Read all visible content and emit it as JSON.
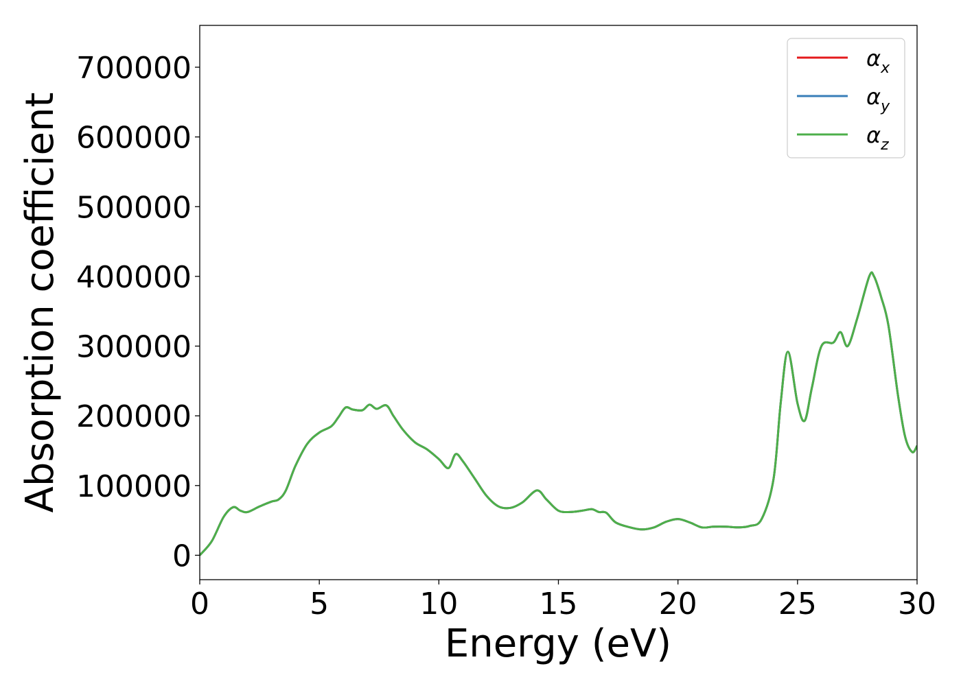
{
  "chart_data": {
    "type": "line",
    "title": "",
    "xlabel": "Energy (eV)",
    "ylabel": "Absorption coefficient",
    "xlim": [
      0,
      30
    ],
    "ylim": [
      -35000,
      760000
    ],
    "xticks": [
      0,
      5,
      10,
      15,
      20,
      25,
      30
    ],
    "yticks": [
      0,
      100000,
      200000,
      300000,
      400000,
      500000,
      600000,
      700000
    ],
    "grid": false,
    "legend_position": "top-right",
    "x": [
      0,
      0.5,
      1.0,
      1.4,
      1.7,
      2.0,
      2.5,
      3.0,
      3.3,
      3.6,
      4.0,
      4.5,
      5.0,
      5.5,
      5.8,
      6.1,
      6.4,
      6.8,
      7.1,
      7.4,
      7.8,
      8.1,
      8.5,
      9.0,
      9.5,
      10.0,
      10.4,
      10.7,
      11.0,
      11.5,
      12.0,
      12.5,
      13.0,
      13.5,
      14.1,
      14.5,
      15.0,
      15.5,
      16.0,
      16.4,
      16.7,
      17.0,
      17.4,
      18.0,
      18.5,
      19.0,
      19.5,
      20.0,
      20.5,
      21.0,
      21.5,
      22.0,
      22.5,
      23.0,
      23.5,
      24.0,
      24.3,
      24.6,
      25.0,
      25.3,
      25.6,
      26.0,
      26.5,
      26.8,
      27.1,
      27.5,
      28.0,
      28.2,
      28.5,
      28.8,
      29.2,
      29.5,
      29.8,
      30.0
    ],
    "series": [
      {
        "name": "α_x",
        "color": "#e41a1c",
        "values": [
          0,
          20000,
          55000,
          69000,
          64000,
          62000,
          70000,
          77000,
          80000,
          93000,
          128000,
          160000,
          176000,
          185000,
          198000,
          212000,
          209000,
          208000,
          216000,
          210000,
          215000,
          200000,
          180000,
          162000,
          152000,
          138000,
          125000,
          145000,
          135000,
          110000,
          85000,
          70000,
          68000,
          76000,
          93000,
          80000,
          64000,
          62000,
          64000,
          66000,
          62000,
          61000,
          47000,
          40000,
          37000,
          40000,
          48000,
          52000,
          47000,
          40000,
          41000,
          41000,
          40000,
          42000,
          52000,
          110000,
          220000,
          292000,
          218000,
          193000,
          240000,
          300000,
          305000,
          320000,
          300000,
          340000,
          400000,
          400000,
          370000,
          330000,
          230000,
          170000,
          148000,
          157000
        ]
      },
      {
        "name": "α_y",
        "color": "#377eb8",
        "values": [
          0,
          20000,
          55000,
          69000,
          64000,
          62000,
          70000,
          77000,
          80000,
          93000,
          128000,
          160000,
          176000,
          185000,
          198000,
          212000,
          209000,
          208000,
          216000,
          210000,
          215000,
          200000,
          180000,
          162000,
          152000,
          138000,
          125000,
          145000,
          135000,
          110000,
          85000,
          70000,
          68000,
          76000,
          93000,
          80000,
          64000,
          62000,
          64000,
          66000,
          62000,
          61000,
          47000,
          40000,
          37000,
          40000,
          48000,
          52000,
          47000,
          40000,
          41000,
          41000,
          40000,
          42000,
          52000,
          110000,
          220000,
          292000,
          218000,
          193000,
          240000,
          300000,
          305000,
          320000,
          300000,
          340000,
          400000,
          400000,
          370000,
          330000,
          230000,
          170000,
          148000,
          157000
        ]
      },
      {
        "name": "α_z",
        "color": "#4daf4a",
        "values": [
          0,
          20000,
          55000,
          69000,
          64000,
          62000,
          70000,
          77000,
          80000,
          93000,
          128000,
          160000,
          176000,
          185000,
          198000,
          212000,
          209000,
          208000,
          216000,
          210000,
          215000,
          200000,
          180000,
          162000,
          152000,
          138000,
          125000,
          145000,
          135000,
          110000,
          85000,
          70000,
          68000,
          76000,
          93000,
          80000,
          64000,
          62000,
          64000,
          66000,
          62000,
          61000,
          47000,
          40000,
          37000,
          40000,
          48000,
          52000,
          47000,
          40000,
          41000,
          41000,
          40000,
          42000,
          52000,
          110000,
          220000,
          292000,
          218000,
          193000,
          240000,
          300000,
          305000,
          320000,
          300000,
          340000,
          400000,
          400000,
          370000,
          330000,
          230000,
          170000,
          148000,
          157000
        ]
      }
    ],
    "legend": [
      {
        "base": "α",
        "sub": "x",
        "color": "#e41a1c"
      },
      {
        "base": "α",
        "sub": "y",
        "color": "#377eb8"
      },
      {
        "base": "α",
        "sub": "z",
        "color": "#4daf4a"
      }
    ]
  }
}
